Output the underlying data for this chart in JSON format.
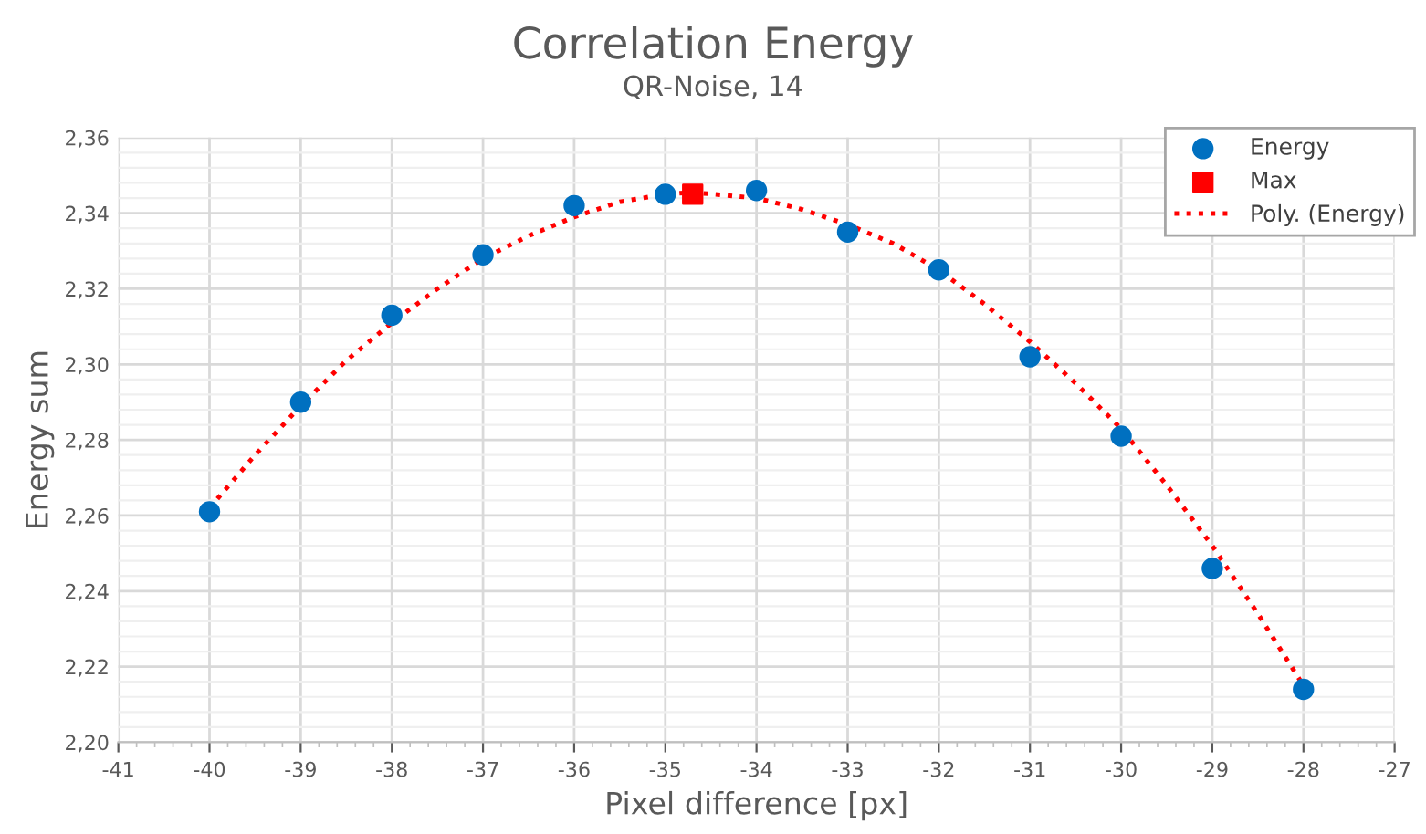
{
  "chart_data": {
    "type": "scatter",
    "title": "Correlation Energy",
    "subtitle": "QR-Noise, 14",
    "xlabel": "Pixel difference [px]",
    "ylabel": "Energy sum",
    "series": [
      {
        "name": "Energy",
        "marker": "circle",
        "color": "#0070c0",
        "x": [
          -40,
          -39,
          -38,
          -37,
          -36,
          -35,
          -34,
          -33,
          -32,
          -31,
          -30,
          -29,
          -28
        ],
        "values": [
          2.261,
          2.29,
          2.313,
          2.329,
          2.342,
          2.345,
          2.346,
          2.335,
          2.325,
          2.302,
          2.281,
          2.246,
          2.214
        ]
      },
      {
        "name": "Max",
        "marker": "square",
        "color": "#ff0000",
        "x": [
          -34.7
        ],
        "values": [
          2.345
        ]
      },
      {
        "name": "Poly. (Energy)",
        "type": "line",
        "line_style": "dotted",
        "marker": "none",
        "color": "#ff0000",
        "x": [
          -40,
          -39.5,
          -39,
          -38.5,
          -38,
          -37.5,
          -37,
          -36.5,
          -36,
          -35.5,
          -35,
          -34.7,
          -34,
          -33.5,
          -33,
          -32.5,
          -32,
          -31.5,
          -31,
          -30.5,
          -30,
          -29.5,
          -29,
          -28.5,
          -28
        ],
        "values": [
          2.262,
          2.276,
          2.289,
          2.301,
          2.311,
          2.32,
          2.328,
          2.334,
          2.339,
          2.343,
          2.345,
          2.3455,
          2.344,
          2.341,
          2.337,
          2.332,
          2.325,
          2.316,
          2.306,
          2.295,
          2.283,
          2.268,
          2.252,
          2.234,
          2.215
        ]
      }
    ],
    "xlim": [
      -41,
      -27
    ],
    "xticks": [
      -41,
      -40,
      -39,
      -38,
      -37,
      -36,
      -35,
      -34,
      -33,
      -32,
      -31,
      -30,
      -29,
      -28,
      -27
    ],
    "ylim": [
      2.2,
      2.36
    ],
    "yticks": [
      {
        "value": 2.2,
        "label": "2,20"
      },
      {
        "value": 2.22,
        "label": "2,22"
      },
      {
        "value": 2.24,
        "label": "2,24"
      },
      {
        "value": 2.26,
        "label": "2,26"
      },
      {
        "value": 2.28,
        "label": "2,28"
      },
      {
        "value": 2.3,
        "label": "2,30"
      },
      {
        "value": 2.32,
        "label": "2,32"
      },
      {
        "value": 2.34,
        "label": "2,34"
      },
      {
        "value": 2.36,
        "label": "2,36"
      }
    ],
    "grid": true,
    "legend": "top right"
  }
}
